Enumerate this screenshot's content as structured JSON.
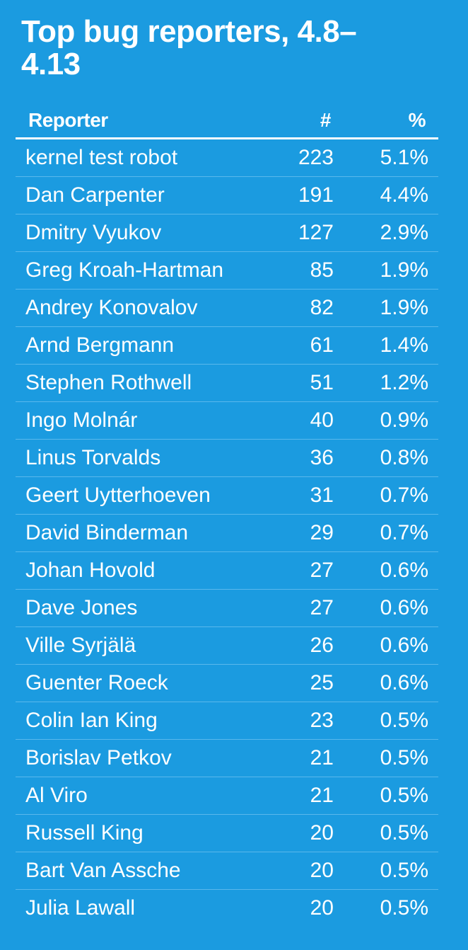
{
  "title": "Top bug reporters, 4.8–4.13",
  "table": {
    "columns": [
      "Reporter",
      "#",
      "%"
    ],
    "rows": [
      [
        "kernel test robot",
        "223",
        "5.1%"
      ],
      [
        "Dan Carpenter",
        "191",
        "4.4%"
      ],
      [
        "Dmitry Vyukov",
        "127",
        "2.9%"
      ],
      [
        "Greg Kroah-Hartman",
        "85",
        "1.9%"
      ],
      [
        "Andrey Konovalov",
        "82",
        "1.9%"
      ],
      [
        "Arnd Bergmann",
        "61",
        "1.4%"
      ],
      [
        "Stephen Rothwell",
        "51",
        "1.2%"
      ],
      [
        "Ingo Molnár",
        "40",
        "0.9%"
      ],
      [
        "Linus Torvalds",
        "36",
        "0.8%"
      ],
      [
        "Geert Uytterhoeven",
        "31",
        "0.7%"
      ],
      [
        "David Binderman",
        "29",
        "0.7%"
      ],
      [
        "Johan Hovold",
        "27",
        "0.6%"
      ],
      [
        "Dave Jones",
        "27",
        "0.6%"
      ],
      [
        "Ville Syrjälä",
        "26",
        "0.6%"
      ],
      [
        "Guenter Roeck",
        "25",
        "0.6%"
      ],
      [
        "Colin Ian King",
        "23",
        "0.5%"
      ],
      [
        "Borislav Petkov",
        "21",
        "0.5%"
      ],
      [
        "Al Viro",
        "21",
        "0.5%"
      ],
      [
        "Russell King",
        "20",
        "0.5%"
      ],
      [
        "Bart Van Assche",
        "20",
        "0.5%"
      ],
      [
        "Julia Lawall",
        "20",
        "0.5%"
      ]
    ]
  }
}
